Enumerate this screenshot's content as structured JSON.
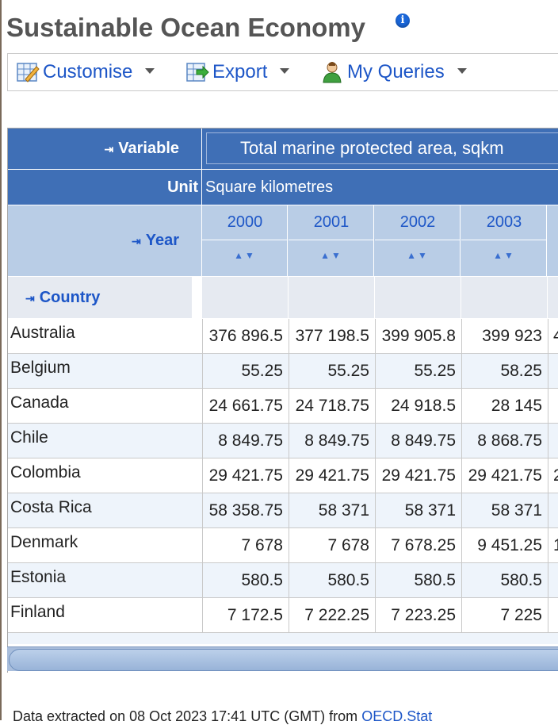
{
  "page": {
    "title": "Sustainable Ocean Economy",
    "info_icon": "i"
  },
  "toolbar": {
    "customise": "Customise",
    "export": "Export",
    "my_queries": "My Queries"
  },
  "table": {
    "variable_label": "Variable",
    "variable_value": "Total marine protected area, sqkm",
    "unit_label": "Unit",
    "unit_value": "Square kilometres",
    "year_label": "Year",
    "country_label": "Country",
    "years": [
      "2000",
      "2001",
      "2002",
      "2003"
    ],
    "rows": [
      {
        "country": "Australia",
        "values": [
          "376 896.5",
          "377 198.5",
          "399 905.8",
          "399 923",
          "4"
        ]
      },
      {
        "country": "Belgium",
        "values": [
          "55.25",
          "55.25",
          "55.25",
          "58.25",
          ""
        ]
      },
      {
        "country": "Canada",
        "values": [
          "24 661.75",
          "24 718.75",
          "24 918.5",
          "28 145",
          ""
        ]
      },
      {
        "country": "Chile",
        "values": [
          "8 849.75",
          "8 849.75",
          "8 849.75",
          "8 868.75",
          ""
        ]
      },
      {
        "country": "Colombia",
        "values": [
          "29 421.75",
          "29 421.75",
          "29 421.75",
          "29 421.75",
          "2"
        ]
      },
      {
        "country": "Costa Rica",
        "values": [
          "58 358.75",
          "58 371",
          "58 371",
          "58 371",
          ""
        ]
      },
      {
        "country": "Denmark",
        "values": [
          "7 678",
          "7 678",
          "7 678.25",
          "9 451.25",
          "1"
        ]
      },
      {
        "country": "Estonia",
        "values": [
          "580.5",
          "580.5",
          "580.5",
          "580.5",
          ""
        ]
      },
      {
        "country": "Finland",
        "values": [
          "7 172.5",
          "7 222.25",
          "7 223.25",
          "7 225",
          ""
        ]
      }
    ]
  },
  "footer": {
    "text": "Data extracted on 08 Oct 2023 17:41 UTC (GMT) from ",
    "link": "OECD.Stat"
  },
  "colors": {
    "header_blue": "#3f6fb6",
    "header_light": "#b9cde6",
    "link_blue": "#1d56c7"
  }
}
